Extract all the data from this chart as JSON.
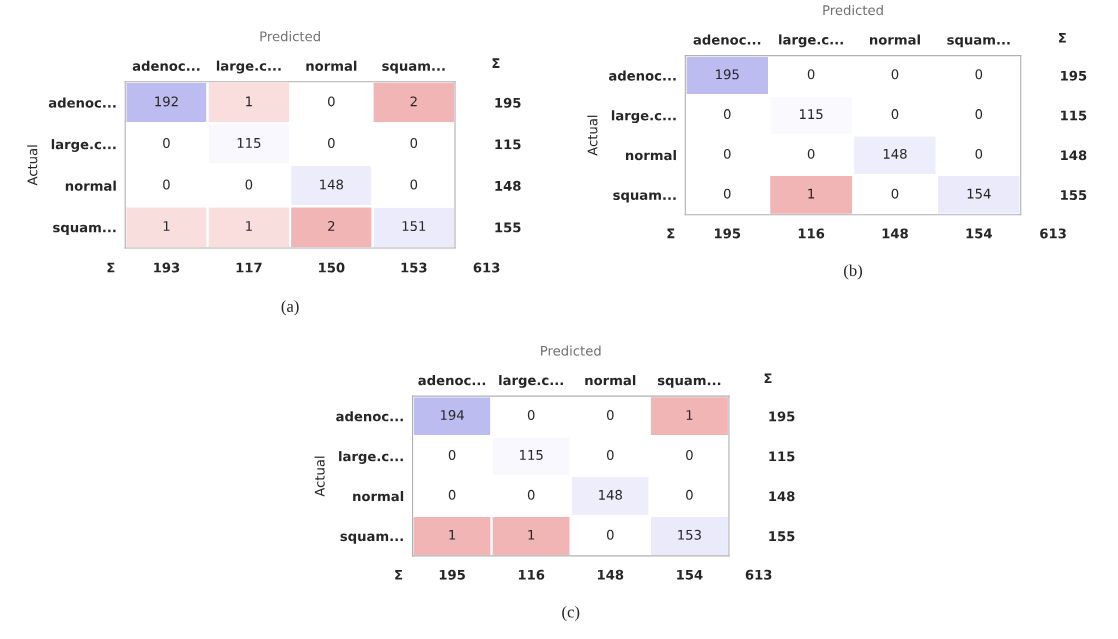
{
  "chart_data": [
    {
      "type": "heatmap",
      "title": "(a)",
      "xlabel": "Predicted",
      "ylabel": "Actual",
      "categories": [
        "adenoc...",
        "large.c...",
        "normal",
        "squam..."
      ],
      "y_categories": [
        "adenoc...",
        "large.c...",
        "normal",
        "squam..."
      ],
      "y2_categories": [
        "195",
        "115",
        "148",
        "155"
      ],
      "cells": [
        [
          192,
          1,
          0,
          2
        ],
        [
          0,
          115,
          0,
          0
        ],
        [
          0,
          0,
          148,
          0
        ],
        [
          1,
          1,
          2,
          151
        ]
      ],
      "data_labels": true,
      "annotations": [
        "Σ",
        "Σ",
        "193",
        "117",
        "150",
        "153",
        "613"
      ]
    },
    {
      "type": "heatmap",
      "title": "(b)",
      "xlabel": "Predicted",
      "ylabel": "Actual",
      "categories": [
        "adenoc...",
        "large.c...",
        "normal",
        "squam..."
      ],
      "y_categories": [
        "adenoc...",
        "large.c...",
        "normal",
        "squam..."
      ],
      "y2_categories": [
        "195",
        "115",
        "148",
        "155"
      ],
      "cells": [
        [
          195,
          0,
          0,
          0
        ],
        [
          0,
          115,
          0,
          0
        ],
        [
          0,
          0,
          148,
          0
        ],
        [
          0,
          1,
          0,
          154
        ]
      ],
      "data_labels": true,
      "annotations": [
        "Σ",
        "Σ",
        "195",
        "116",
        "148",
        "154",
        "613"
      ]
    },
    {
      "type": "heatmap",
      "title": "(c)",
      "xlabel": "Predicted",
      "ylabel": "Actual",
      "categories": [
        "adenoc...",
        "large.c...",
        "normal",
        "squam..."
      ],
      "y_categories": [
        "adenoc...",
        "large.c...",
        "normal",
        "squam..."
      ],
      "y2_categories": [
        "195",
        "115",
        "148",
        "155"
      ],
      "cells": [
        [
          194,
          0,
          0,
          1
        ],
        [
          0,
          115,
          0,
          0
        ],
        [
          0,
          0,
          148,
          0
        ],
        [
          1,
          1,
          0,
          153
        ]
      ],
      "data_labels": true,
      "annotations": [
        "Σ",
        "Σ",
        "195",
        "116",
        "148",
        "154",
        "613"
      ]
    }
  ]
}
